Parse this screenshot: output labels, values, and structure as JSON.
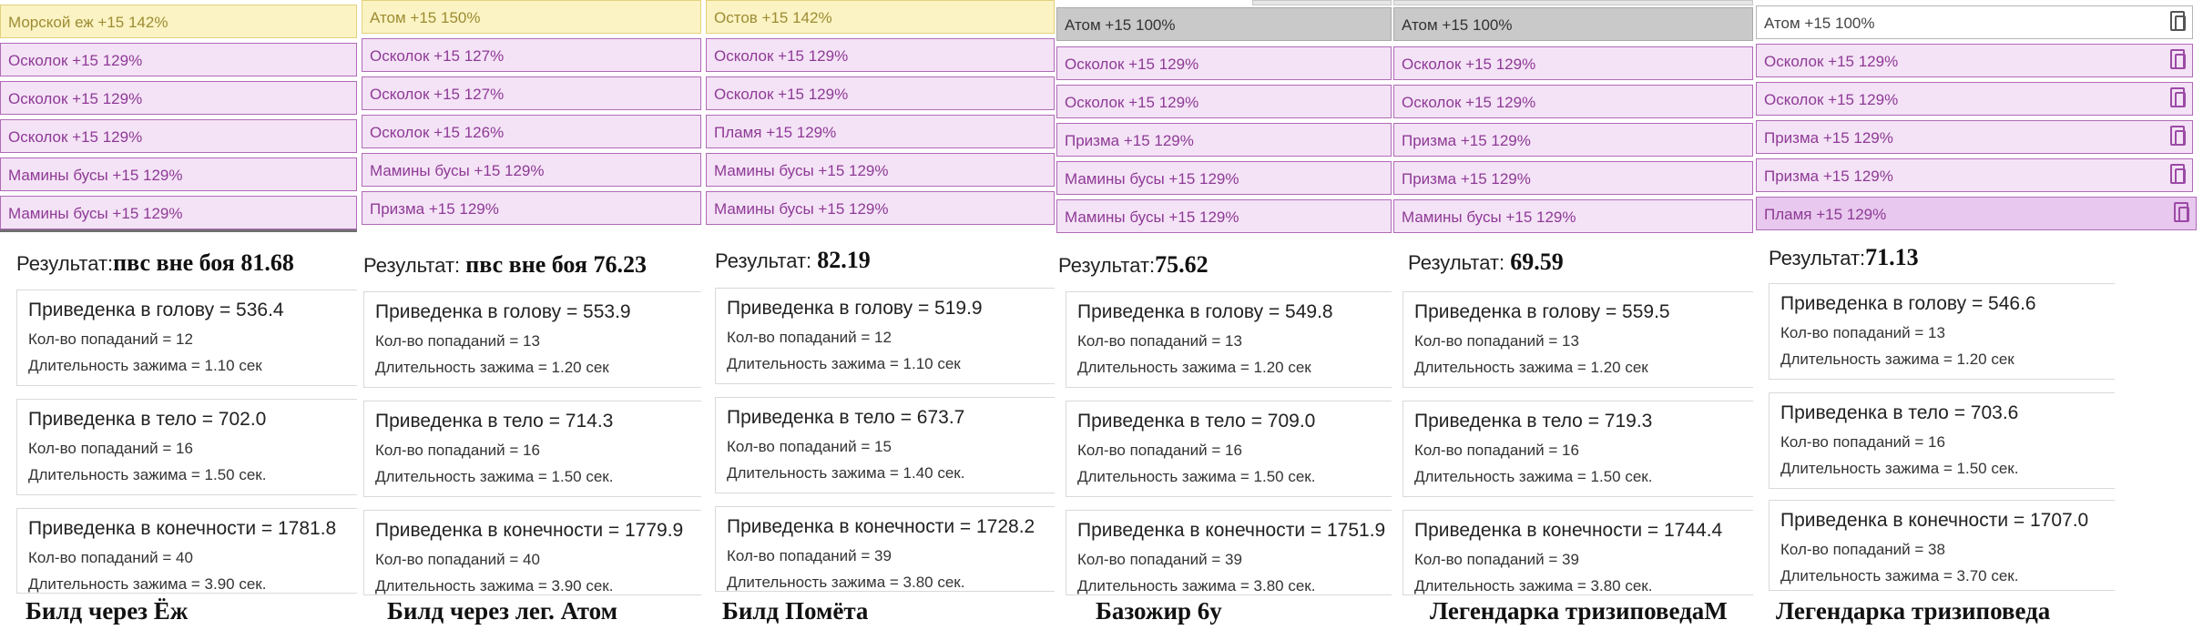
{
  "builds": [
    {
      "caption": "Билд через Ёж",
      "result_label": "Результат:",
      "result_value": "пвс вне боя 81.68",
      "slots": [
        "Морской еж +15 142%",
        "Осколок +15 129%",
        "Осколок +15 129%",
        "Осколок +15 129%",
        "Мамины бусы +15 129%",
        "Мамины бусы +15 129%"
      ],
      "cards": [
        {
          "title": "Приведенка в голову = 536.4",
          "hits": "Кол-во попаданий = 12",
          "hold": "Длительность зажима = 1.10 сек"
        },
        {
          "title": "Приведенка в тело = 702.0",
          "hits": "Кол-во попаданий = 16",
          "hold": "Длительность зажима = 1.50 сек."
        },
        {
          "title": "Приведенка в конечности = 1781.8",
          "hits": "Кол-во попаданий = 40",
          "hold": "Длительность зажима = 3.90 сек."
        }
      ]
    },
    {
      "caption": "Билд через лег. Атом",
      "result_label": "Результат:",
      "result_value": "пвс вне боя 76.23",
      "slots": [
        "Атом +15 150%",
        "Осколок +15 127%",
        "Осколок +15 127%",
        "Осколок +15 126%",
        "Мамины бусы +15 129%",
        "Призма +15 129%"
      ],
      "cards": [
        {
          "title": "Приведенка в голову = 553.9",
          "hits": "Кол-во попаданий = 13",
          "hold": "Длительность зажима = 1.20 сек"
        },
        {
          "title": "Приведенка в тело = 714.3",
          "hits": "Кол-во попаданий = 16",
          "hold": "Длительность зажима = 1.50 сек."
        },
        {
          "title": "Приведенка в конечности = 1779.9",
          "hits": "Кол-во попаданий = 40",
          "hold": "Длительность зажима = 3.90 сек."
        }
      ]
    },
    {
      "caption": "Билд Помёта",
      "result_label": "Результат:",
      "result_value": "82.19",
      "slots": [
        "Остов +15 142%",
        "Осколок +15 129%",
        "Осколок +15 129%",
        "Пламя +15 129%",
        "Мамины бусы +15 129%",
        "Мамины бусы +15 129%"
      ],
      "cards": [
        {
          "title": "Приведенка в голову = 519.9",
          "hits": "Кол-во попаданий = 12",
          "hold": "Длительность зажима = 1.10 сек"
        },
        {
          "title": "Приведенка в тело = 673.7",
          "hits": "Кол-во попаданий = 15",
          "hold": "Длительность зажима = 1.40 сек."
        },
        {
          "title": "Приведенка в конечности = 1728.2",
          "hits": "Кол-во попаданий = 39",
          "hold": "Длительность зажима = 3.80 сек."
        }
      ]
    },
    {
      "caption": "Базожир 6у",
      "result_label": "Результат:",
      "result_value": "75.62",
      "slots": [
        "Атом +15 100%",
        "Осколок +15 129%",
        "Осколок +15 129%",
        "Призма +15 129%",
        "Мамины бусы +15 129%",
        "Мамины бусы +15 129%"
      ],
      "cards": [
        {
          "title": "Приведенка в голову = 549.8",
          "hits": "Кол-во попаданий = 13",
          "hold": "Длительность зажима = 1.20 сек"
        },
        {
          "title": "Приведенка в тело = 709.0",
          "hits": "Кол-во попаданий = 16",
          "hold": "Длительность зажима = 1.50 сек."
        },
        {
          "title": "Приведенка в конечности = 1751.9",
          "hits": "Кол-во попаданий = 39",
          "hold": "Длительность зажима = 3.80 сек."
        }
      ]
    },
    {
      "caption": "Легендарка тризиповедаМ",
      "result_label": "Результат:",
      "result_value": "69.59",
      "slots": [
        "Атом +15 100%",
        "Осколок +15 129%",
        "Осколок +15 129%",
        "Призма +15 129%",
        "Призма +15 129%",
        "Мамины бусы +15 129%"
      ],
      "cards": [
        {
          "title": "Приведенка в голову = 559.5",
          "hits": "Кол-во попаданий = 13",
          "hold": "Длительность зажима = 1.20 сек"
        },
        {
          "title": "Приведенка в тело = 719.3",
          "hits": "Кол-во попаданий = 16",
          "hold": "Длительность зажима = 1.50 сек."
        },
        {
          "title": "Приведенка в конечности = 1744.4",
          "hits": "Кол-во попаданий = 39",
          "hold": "Длительность зажима = 3.80 сек."
        }
      ]
    },
    {
      "caption": "Легендарка тризиповеда",
      "result_label": "Результат:",
      "result_value": "71.13",
      "slots": [
        "Атом +15 100%",
        "Осколок +15 129%",
        "Осколок +15 129%",
        "Призма +15 129%",
        "Призма +15 129%",
        "Пламя +15 129%"
      ],
      "cards": [
        {
          "title": "Приведенка в голову = 546.6",
          "hits": "Кол-во попаданий = 13",
          "hold": "Длительность зажима = 1.20 сек"
        },
        {
          "title": "Приведенка в тело = 703.6",
          "hits": "Кол-во попаданий = 16",
          "hold": "Длительность зажима = 1.50 сек."
        },
        {
          "title": "Приведенка в конечности = 1707.0",
          "hits": "Кол-во попаданий = 38",
          "hold": "Длительность зажима = 3.70 сек."
        }
      ]
    }
  ],
  "colors": {
    "slot_purple_bg": "#f4e3f6",
    "slot_purple_border": "#b06ab8",
    "slot_gold_bg": "#fbf3c3",
    "slot_gray_bg": "#c9c9c9"
  },
  "icons": {
    "slot_action": "copy-icon"
  }
}
